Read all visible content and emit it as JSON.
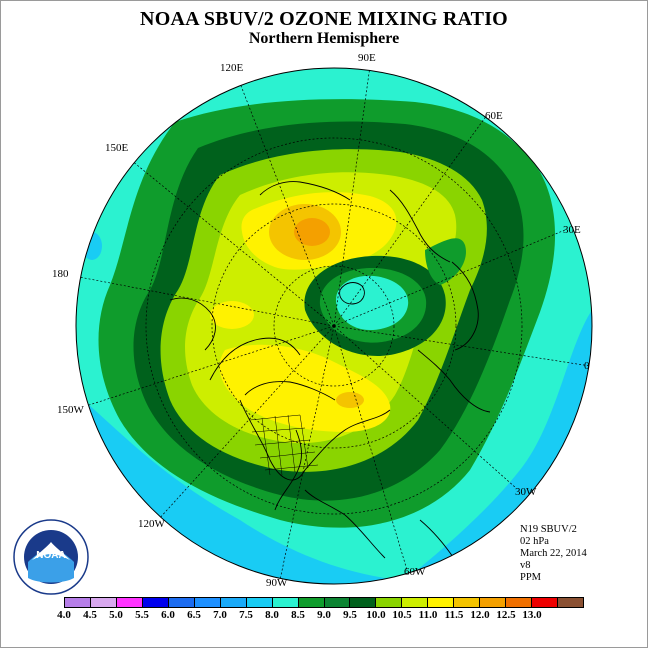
{
  "title": "NOAA SBUV/2 OZONE MIXING RATIO",
  "subtitle": "Northern Hemisphere",
  "longitude_labels": {
    "lon_90e": "90E",
    "lon_120e": "120E",
    "lon_60e": "60E",
    "lon_150e": "150E",
    "lon_30e": "30E",
    "lon_180": "180",
    "lon_0": "0",
    "lon_150w": "150W",
    "lon_30w": "30W",
    "lon_120w": "120W",
    "lon_60w": "60W",
    "lon_90w": "90W"
  },
  "info": {
    "instrument": "N19 SBUV/2",
    "level": "02 hPa",
    "date": "March 22, 2014",
    "version": "v8",
    "units": "PPM"
  },
  "colorbar": {
    "colors": [
      "#b67ee8",
      "#d8a8ee",
      "#ff33ff",
      "#0000ee",
      "#1c6cf0",
      "#1e90ff",
      "#1aaaf8",
      "#19ccf4",
      "#2bf2d0",
      "#0f9c2c",
      "#0c8432",
      "#00611c",
      "#8ad400",
      "#cdee00",
      "#fff200",
      "#f4c400",
      "#f4a000",
      "#f07000",
      "#ee0000",
      "#8a5032"
    ],
    "ticks": [
      "4.0",
      "4.5",
      "5.0",
      "5.5",
      "6.0",
      "6.5",
      "7.0",
      "7.5",
      "8.0",
      "8.5",
      "9.0",
      "9.5",
      "10.0",
      "10.5",
      "11.0",
      "11.5",
      "12.0",
      "12.5",
      "13.0"
    ]
  },
  "map_colors": {
    "outer": "#2bf2d0",
    "cyan_blue": "#19ccf4",
    "green_light": "#0f9c2c",
    "green_dark": "#00611c",
    "lime": "#8ad400",
    "yellow_green": "#cdee00",
    "yellow": "#fff200",
    "gold": "#f4c400",
    "orange": "#f4a000"
  },
  "logo_text": "NOAA"
}
